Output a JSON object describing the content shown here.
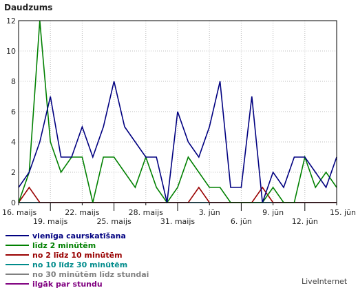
{
  "chart_data": {
    "type": "line",
    "title": "Daudzums",
    "ylim": [
      0,
      12
    ],
    "yticks": [
      0,
      2,
      4,
      6,
      8,
      10,
      12
    ],
    "grid": true,
    "legend": "bottom-left",
    "x": [
      "16. maijs",
      "17. maijs",
      "18. maijs",
      "19. maijs",
      "20. maijs",
      "21. maijs",
      "22. maijs",
      "23. maijs",
      "24. maijs",
      "25. maijs",
      "26. maijs",
      "27. maijs",
      "28. maijs",
      "29. maijs",
      "30. maijs",
      "31. maijs",
      "1. jūn",
      "2. jūn",
      "3. jūn",
      "4. jūn",
      "5. jūn",
      "6. jūn",
      "7. jūn",
      "8. jūn",
      "9. jūn",
      "10. jūn",
      "11. jūn",
      "12. jūn",
      "13. jūn",
      "14. jūn",
      "15. jūn"
    ],
    "xtick_labels": [
      {
        "i": 0,
        "text": "16. maijs",
        "row": 1
      },
      {
        "i": 3,
        "text": "19. maijs",
        "row": 2
      },
      {
        "i": 6,
        "text": "22. maijs",
        "row": 1
      },
      {
        "i": 9,
        "text": "25. maijs",
        "row": 2
      },
      {
        "i": 12,
        "text": "28. maijs",
        "row": 1
      },
      {
        "i": 15,
        "text": "31. maijs",
        "row": 2
      },
      {
        "i": 18,
        "text": "3. jūn",
        "row": 1
      },
      {
        "i": 21,
        "text": "6. jūn",
        "row": 2
      },
      {
        "i": 24,
        "text": "9. jūn",
        "row": 1
      },
      {
        "i": 27,
        "text": "12. jūn",
        "row": 2
      },
      {
        "i": 30,
        "text": "15. jūn",
        "row": 1
      }
    ],
    "series": [
      {
        "name": "vienīga caurskatīšana",
        "color": "#000080",
        "values": [
          1,
          2,
          4,
          7,
          3,
          3,
          5,
          3,
          5,
          8,
          5,
          4,
          3,
          3,
          0,
          6,
          4,
          3,
          5,
          8,
          1,
          1,
          7,
          0,
          2,
          1,
          3,
          3,
          2,
          1,
          3
        ]
      },
      {
        "name": "līdz 2 minūtēm",
        "color": "#008000",
        "values": [
          0,
          2,
          12,
          4,
          2,
          3,
          3,
          0,
          3,
          3,
          2,
          1,
          3,
          1,
          0,
          1,
          3,
          2,
          1,
          1,
          0,
          0,
          0,
          0,
          1,
          0,
          0,
          3,
          1,
          2,
          1
        ]
      },
      {
        "name": "no 2 līdz 10 minūtēm",
        "color": "#990000",
        "values": [
          0,
          1,
          0,
          0,
          0,
          0,
          0,
          0,
          0,
          0,
          0,
          0,
          0,
          0,
          0,
          0,
          0,
          1,
          0,
          0,
          0,
          0,
          0,
          1,
          0,
          0,
          0,
          0,
          0,
          0,
          0
        ]
      },
      {
        "name": "no 10 līdz 30 minūtēm",
        "color": "#008b8b",
        "values": [
          0,
          0,
          0,
          0,
          0,
          0,
          0,
          0,
          0,
          0,
          0,
          0,
          0,
          0,
          0,
          0,
          0,
          0,
          0,
          0,
          0,
          0,
          0,
          0,
          0,
          0,
          0,
          0,
          0,
          0,
          0
        ]
      },
      {
        "name": "no 30 minūtēm līdz stundai",
        "color": "#808080",
        "values": [
          0,
          0,
          0,
          0,
          0,
          0,
          0,
          0,
          0,
          0,
          0,
          0,
          0,
          0,
          0,
          0,
          0,
          0,
          0,
          0,
          0,
          0,
          0,
          0,
          0,
          0,
          0,
          0,
          0,
          0,
          0
        ]
      },
      {
        "name": "ilgāk par stundu",
        "color": "#800080",
        "values": [
          0,
          0,
          0,
          0,
          0,
          0,
          0,
          0,
          0,
          0,
          0,
          0,
          0,
          0,
          0,
          0,
          0,
          0,
          0,
          0,
          0,
          0,
          0,
          0,
          0,
          0,
          0,
          0,
          0,
          0,
          0
        ]
      }
    ]
  },
  "brand": "LiveInternet"
}
